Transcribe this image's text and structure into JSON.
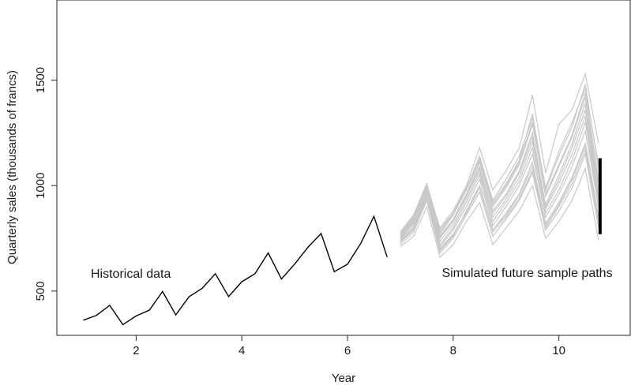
{
  "chart_data": {
    "type": "line",
    "title": "",
    "xlabel": "Year",
    "ylabel": "Quarterly sales (thousands of francs)",
    "xlim": [
      0.5,
      11.35
    ],
    "ylim": [
      290,
      1880
    ],
    "xticks": [
      2,
      4,
      6,
      8,
      10
    ],
    "yticks": [
      500,
      1000,
      1500
    ],
    "grid": false,
    "legend": "none",
    "colors": {
      "historical": "#000000",
      "simulated": "#c8c8c8",
      "interval": "#000000"
    },
    "annotations": [
      {
        "text": "Historical data",
        "x": 1.9,
        "y": 585
      },
      {
        "text": "Simulated future sample paths",
        "x": 9.4,
        "y": 590
      }
    ],
    "series": [
      {
        "role": "historical",
        "x": [
          1.0,
          1.25,
          1.5,
          1.75,
          2.0,
          2.25,
          2.5,
          2.75,
          3.0,
          3.25,
          3.5,
          3.75,
          4.0,
          4.25,
          4.5,
          4.75,
          5.0,
          5.25,
          5.5,
          5.75,
          6.0,
          6.25,
          6.5,
          6.75
        ],
        "values": [
          362,
          385,
          432,
          341,
          382,
          409,
          498,
          387,
          473,
          513,
          582,
          474,
          544,
          582,
          681,
          557,
          628,
          707,
          773,
          592,
          627,
          725,
          854,
          661
        ]
      },
      {
        "role": "simulated",
        "x": [
          7.0,
          7.25,
          7.5,
          7.75,
          8.0,
          8.25,
          8.5,
          8.75,
          9.0,
          9.25,
          9.5,
          9.75,
          10.0,
          10.25,
          10.5,
          10.75
        ],
        "values": [
          770,
          845,
          990,
          760,
          840,
          960,
          1110,
          900,
          990,
          1100,
          1290,
          950,
          1090,
          1230,
          1420,
          1010
        ]
      },
      {
        "role": "simulated",
        "x": [
          7.0,
          7.25,
          7.5,
          7.75,
          8.0,
          8.25,
          8.5,
          8.75,
          9.0,
          9.25,
          9.5,
          9.75,
          10.0,
          10.25,
          10.5,
          10.75
        ],
        "values": [
          740,
          800,
          950,
          690,
          760,
          880,
          1000,
          790,
          870,
          960,
          1110,
          820,
          920,
          1040,
          1200,
          860
        ]
      },
      {
        "role": "simulated",
        "x": [
          7.0,
          7.25,
          7.5,
          7.75,
          8.0,
          8.25,
          8.5,
          8.75,
          9.0,
          9.25,
          9.5,
          9.75,
          10.0,
          10.25,
          10.5,
          10.75
        ],
        "values": [
          760,
          830,
          1000,
          800,
          880,
          1000,
          1180,
          980,
          1070,
          1180,
          1430,
          1060,
          1290,
          1360,
          1530,
          1200
        ]
      },
      {
        "role": "simulated",
        "x": [
          7.0,
          7.25,
          7.5,
          7.75,
          8.0,
          8.25,
          8.5,
          8.75,
          9.0,
          9.25,
          9.5,
          9.75,
          10.0,
          10.25,
          10.5,
          10.75
        ],
        "values": [
          710,
          760,
          900,
          660,
          720,
          830,
          920,
          720,
          800,
          880,
          1000,
          750,
          830,
          930,
          1080,
          740
        ]
      },
      {
        "role": "simulated",
        "x": [
          7.0,
          7.25,
          7.5,
          7.75,
          8.0,
          8.25,
          8.5,
          8.75,
          9.0,
          9.25,
          9.5,
          9.75,
          10.0,
          10.25,
          10.5,
          10.75
        ],
        "values": [
          780,
          860,
          1010,
          790,
          870,
          990,
          1130,
          920,
          1010,
          1120,
          1340,
          980,
          1140,
          1280,
          1480,
          1080
        ]
      },
      {
        "role": "simulated",
        "x": [
          7.0,
          7.25,
          7.5,
          7.75,
          8.0,
          8.25,
          8.5,
          8.75,
          9.0,
          9.25,
          9.5,
          9.75,
          10.0,
          10.25,
          10.5,
          10.75
        ],
        "values": [
          730,
          790,
          940,
          700,
          770,
          870,
          990,
          780,
          850,
          940,
          1070,
          800,
          900,
          1010,
          1170,
          830
        ]
      },
      {
        "role": "simulated",
        "x": [
          7.0,
          7.25,
          7.5,
          7.75,
          8.0,
          8.25,
          8.5,
          8.75,
          9.0,
          9.25,
          9.5,
          9.75,
          10.0,
          10.25,
          10.5,
          10.75
        ],
        "values": [
          760,
          840,
          980,
          750,
          830,
          950,
          1080,
          870,
          950,
          1060,
          1230,
          900,
          1030,
          1180,
          1360,
          960
        ]
      },
      {
        "role": "simulated",
        "x": [
          7.0,
          7.25,
          7.5,
          7.75,
          8.0,
          8.25,
          8.5,
          8.75,
          9.0,
          9.25,
          9.5,
          9.75,
          10.0,
          10.25,
          10.5,
          10.75
        ],
        "values": [
          750,
          820,
          970,
          720,
          800,
          920,
          1050,
          830,
          920,
          1020,
          1180,
          870,
          980,
          1120,
          1300,
          920
        ]
      },
      {
        "role": "simulated",
        "x": [
          7.0,
          7.25,
          7.5,
          7.75,
          8.0,
          8.25,
          8.5,
          8.75,
          9.0,
          9.25,
          9.5,
          9.75,
          10.0,
          10.25,
          10.5,
          10.75
        ],
        "values": [
          720,
          780,
          930,
          680,
          750,
          860,
          970,
          760,
          840,
          930,
          1060,
          790,
          880,
          990,
          1150,
          800
        ]
      },
      {
        "role": "simulated",
        "x": [
          7.0,
          7.25,
          7.5,
          7.75,
          8.0,
          8.25,
          8.5,
          8.75,
          9.0,
          9.25,
          9.5,
          9.75,
          10.0,
          10.25,
          10.5,
          10.75
        ],
        "values": [
          770,
          850,
          1000,
          770,
          860,
          980,
          1120,
          910,
          1000,
          1110,
          1300,
          960,
          1100,
          1240,
          1440,
          1030
        ]
      },
      {
        "role": "simulated",
        "x": [
          7.0,
          7.25,
          7.5,
          7.75,
          8.0,
          8.25,
          8.5,
          8.75,
          9.0,
          9.25,
          9.5,
          9.75,
          10.0,
          10.25,
          10.5,
          10.75
        ],
        "values": [
          745,
          810,
          960,
          710,
          790,
          900,
          1030,
          810,
          900,
          1000,
          1150,
          850,
          960,
          1090,
          1260,
          900
        ]
      },
      {
        "role": "simulated",
        "x": [
          7.0,
          7.25,
          7.5,
          7.75,
          8.0,
          8.25,
          8.5,
          8.75,
          9.0,
          9.25,
          9.5,
          9.75,
          10.0,
          10.25,
          10.5,
          10.75
        ],
        "values": [
          765,
          835,
          985,
          755,
          835,
          955,
          1090,
          880,
          960,
          1070,
          1250,
          910,
          1050,
          1200,
          1390,
          980
        ]
      },
      {
        "role": "simulated",
        "x": [
          7.0,
          7.25,
          7.5,
          7.75,
          8.0,
          8.25,
          8.5,
          8.75,
          9.0,
          9.25,
          9.5,
          9.75,
          10.0,
          10.25,
          10.5,
          10.75
        ],
        "values": [
          735,
          795,
          945,
          695,
          765,
          875,
          995,
          790,
          860,
          955,
          1090,
          810,
          910,
          1030,
          1190,
          850
        ]
      },
      {
        "role": "simulated",
        "x": [
          7.0,
          7.25,
          7.5,
          7.75,
          8.0,
          8.25,
          8.5,
          8.75,
          9.0,
          9.25,
          9.5,
          9.75,
          10.0,
          10.25,
          10.5,
          10.75
        ],
        "values": [
          755,
          825,
          975,
          735,
          815,
          935,
          1065,
          850,
          935,
          1040,
          1210,
          890,
          1010,
          1150,
          1330,
          940
        ]
      },
      {
        "role": "simulated",
        "x": [
          7.0,
          7.25,
          7.5,
          7.75,
          8.0,
          8.25,
          8.5,
          8.75,
          9.0,
          9.25,
          9.5,
          9.75,
          10.0,
          10.25,
          10.5,
          10.75
        ],
        "values": [
          775,
          855,
          1005,
          780,
          865,
          985,
          1140,
          930,
          1030,
          1140,
          1320,
          990,
          1160,
          1300,
          1460,
          1100
        ]
      }
    ],
    "interval": {
      "x": 10.78,
      "low": 770,
      "high": 1130
    }
  }
}
